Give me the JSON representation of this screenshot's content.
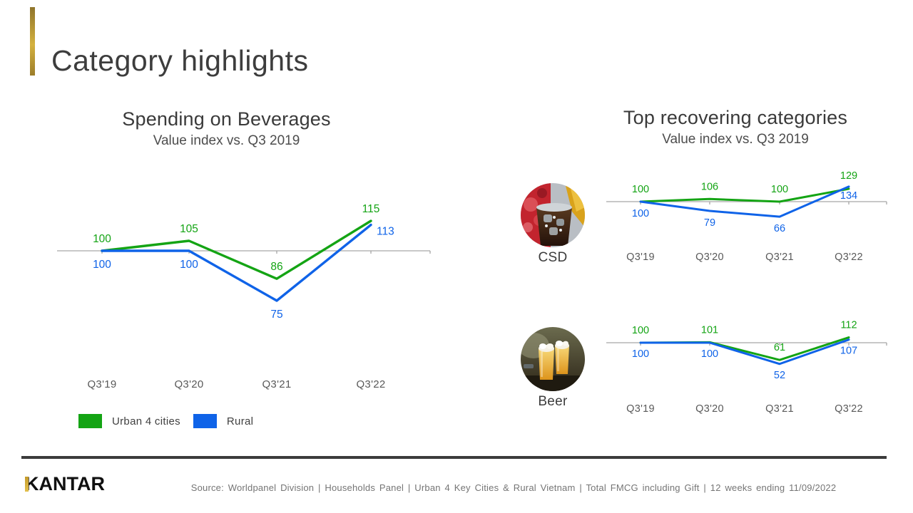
{
  "slide": {
    "title": "Category highlights"
  },
  "charts_meta": {
    "left": {
      "title": "Spending on Beverages",
      "subtitle": "Value index vs. Q3 2019"
    },
    "right": {
      "title": "Top recovering categories",
      "subtitle": "Value index vs. Q3 2019"
    }
  },
  "colors": {
    "urban_green": "#14a414",
    "rural_blue": "#0f63e8",
    "axis_gray": "#a6a6a6",
    "x_label_gray": "#595959",
    "accent_gold": "#c9a437",
    "divider_dark": "#3b3b3b"
  },
  "footer": {
    "brand": "KANTAR",
    "source": "Source:  Worldpanel  Division | Households Panel | Urban  4 Key Cities & Rural  Vietnam | Total FMCG including  Gift | 12 weeks ending  11/09/2022"
  },
  "chart_data": [
    {
      "id": "beverages",
      "type": "line",
      "title": "Spending on Beverages",
      "subtitle": "Value index vs. Q3 2019",
      "categories": [
        "Q3'19",
        "Q3'20",
        "Q3'21",
        "Q3'22"
      ],
      "baseline": 100,
      "series": [
        {
          "name": "Urban 4 cities",
          "color": "#14a414",
          "values": [
            100,
            105,
            86,
            115
          ]
        },
        {
          "name": "Rural",
          "color": "#0f63e8",
          "values": [
            100,
            100,
            75,
            113
          ]
        }
      ],
      "legend_position": "bottom-left",
      "grid": false
    },
    {
      "id": "csd",
      "type": "line",
      "title": "CSD",
      "categories": [
        "Q3'19",
        "Q3'20",
        "Q3'21",
        "Q3'22"
      ],
      "baseline": 100,
      "series": [
        {
          "name": "Urban 4 cities",
          "color": "#14a414",
          "values": [
            100,
            106,
            100,
            129
          ]
        },
        {
          "name": "Rural",
          "color": "#0f63e8",
          "values": [
            100,
            79,
            66,
            134
          ]
        }
      ],
      "grid": false
    },
    {
      "id": "beer",
      "type": "line",
      "title": "Beer",
      "categories": [
        "Q3'19",
        "Q3'20",
        "Q3'21",
        "Q3'22"
      ],
      "baseline": 100,
      "series": [
        {
          "name": "Urban 4 cities",
          "color": "#14a414",
          "values": [
            100,
            101,
            61,
            112
          ]
        },
        {
          "name": "Rural",
          "color": "#0f63e8",
          "values": [
            100,
            100,
            52,
            107
          ]
        }
      ],
      "grid": false
    }
  ]
}
